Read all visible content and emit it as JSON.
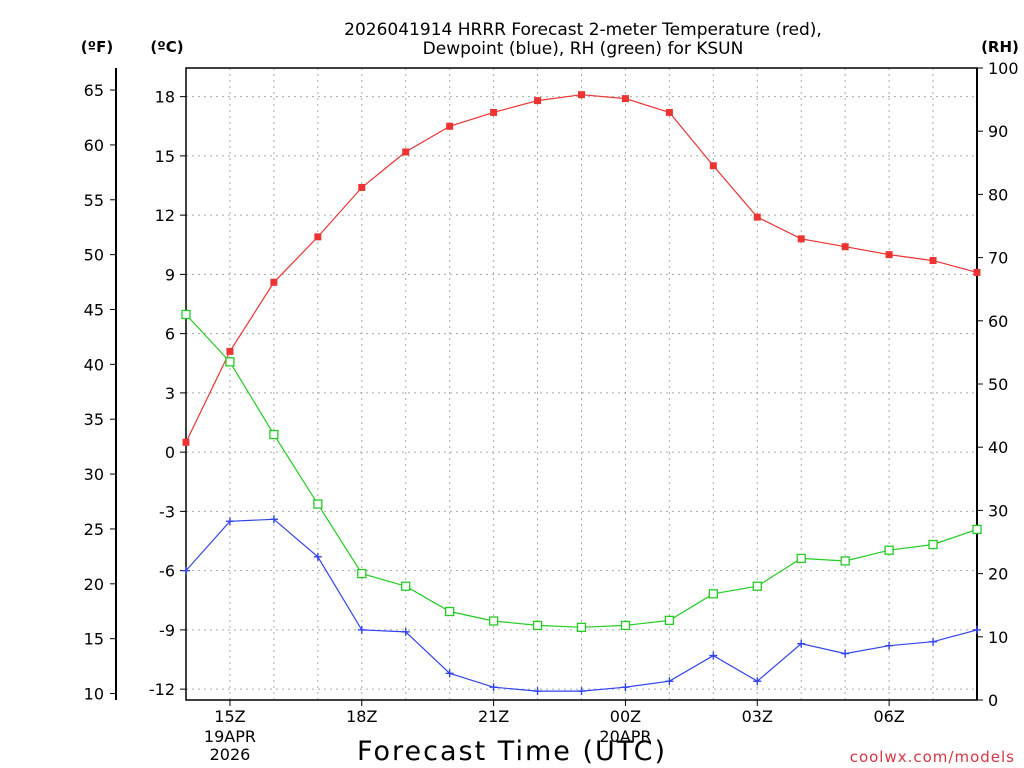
{
  "chart_data": {
    "type": "line",
    "title_line1": "2026041914 HRRR Forecast 2-meter Temperature (red),",
    "title_line2": "Dewpoint (blue), RH (green) for KSUN",
    "unit_f": "(ºF)",
    "unit_c": "(ºC)",
    "unit_rh": "(RH)",
    "xlabel": "Forecast Time (UTC)",
    "watermark": "coolwx.com/models",
    "x_hours": [
      14,
      15,
      16,
      17,
      18,
      19,
      20,
      21,
      22,
      23,
      0,
      1,
      2,
      3,
      4,
      5,
      6,
      7,
      8
    ],
    "xlim": [
      14,
      32
    ],
    "x_ticks": [
      {
        "hour": 15,
        "label": "15Z",
        "sub1": "19APR",
        "sub2": "2026"
      },
      {
        "hour": 18,
        "label": "18Z",
        "sub1": "",
        "sub2": ""
      },
      {
        "hour": 21,
        "label": "21Z",
        "sub1": "",
        "sub2": ""
      },
      {
        "hour": 24,
        "label": "00Z",
        "sub1": "20APR",
        "sub2": ""
      },
      {
        "hour": 27,
        "label": "03Z",
        "sub1": "",
        "sub2": ""
      },
      {
        "hour": 30,
        "label": "06Z",
        "sub1": "",
        "sub2": ""
      }
    ],
    "y_c_lim": [
      -12.55,
      19.45
    ],
    "y_c_ticks": [
      "-12",
      "-9",
      "-6",
      "-3",
      "0",
      "3",
      "6",
      "9",
      "12",
      "15",
      "18"
    ],
    "y_f_ticks": [
      "10",
      "15",
      "20",
      "25",
      "30",
      "35",
      "40",
      "45",
      "50",
      "55",
      "60",
      "65"
    ],
    "y_rh_lim": [
      0,
      100
    ],
    "y_rh_ticks": [
      "0",
      "10",
      "20",
      "30",
      "40",
      "50",
      "60",
      "70",
      "80",
      "90",
      "100"
    ],
    "colors": {
      "temperature": "#ee3333",
      "dewpoint": "#3344ee",
      "rh": "#22cc22"
    },
    "series": [
      {
        "name": "Temperature (°C)",
        "axis": "c",
        "values": [
          0.5,
          5.1,
          8.6,
          10.9,
          13.4,
          15.2,
          16.5,
          17.2,
          17.8,
          18.1,
          17.9,
          17.2,
          14.5,
          11.9,
          10.8,
          10.4,
          10.0,
          9.7,
          9.1
        ]
      },
      {
        "name": "Dewpoint (°C)",
        "axis": "c",
        "values": [
          -6.0,
          -3.5,
          -3.4,
          -5.3,
          -9.0,
          -9.1,
          -11.2,
          -11.9,
          -12.1,
          -12.1,
          -11.9,
          -11.6,
          -10.3,
          -11.6,
          -9.7,
          -10.2,
          -9.8,
          -9.6,
          -9.0
        ]
      },
      {
        "name": "RH (%)",
        "axis": "rh",
        "values": [
          61,
          53.5,
          42,
          31,
          20,
          18,
          14,
          12.5,
          11.8,
          11.5,
          11.8,
          12.6,
          16.8,
          18,
          22.4,
          22,
          23.7,
          24.6,
          27
        ]
      }
    ]
  }
}
